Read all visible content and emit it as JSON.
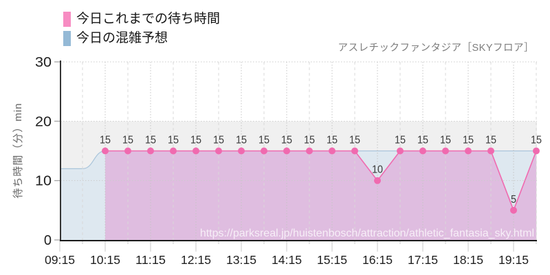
{
  "legend": {
    "items": [
      {
        "label": "今日これまでの待ち時間",
        "color": "#f78cc2"
      },
      {
        "label": "今日の混雑予想",
        "color": "#94b9d6"
      }
    ]
  },
  "chart_data": {
    "type": "area",
    "title": "アスレチックファンタジア［SKYフロア］",
    "ylabel": "待ち時間（分）min",
    "ylim": [
      0,
      30
    ],
    "yticks": [
      0,
      10,
      20,
      30
    ],
    "xticks": [
      "09:15",
      "10:15",
      "11:15",
      "12:15",
      "13:15",
      "14:15",
      "15:15",
      "16:15",
      "17:15",
      "18:15",
      "19:15"
    ],
    "grid": true,
    "legend_position": "top-left",
    "band_max": 20,
    "band_color": "#f0f0f0",
    "series": [
      {
        "name": "今日の混雑予想",
        "role": "forecast",
        "start": "09:15",
        "step_min": 30,
        "line_color": "#a9c4da",
        "fill_color": "#dee8f0",
        "show_points": false,
        "show_labels": false,
        "smooth": true,
        "values": [
          12,
          12,
          15,
          15,
          15,
          15,
          15,
          15,
          15,
          15,
          15,
          15,
          15,
          15,
          15,
          15,
          15,
          15,
          15,
          15,
          15,
          15
        ]
      },
      {
        "name": "今日これまでの待ち時間",
        "role": "actual",
        "start": "10:15",
        "step_min": 30,
        "line_color": "#f06aaf",
        "fill_color": "#dfbde0",
        "show_points": true,
        "show_labels": true,
        "smooth": false,
        "values": [
          15,
          15,
          15,
          15,
          15,
          15,
          15,
          15,
          15,
          15,
          15,
          15,
          10,
          15,
          15,
          15,
          15,
          15,
          5,
          15
        ]
      }
    ],
    "watermark": "https://parksreal.jp/huistenbosch/attraction/athletic_fantasia_sky.html"
  }
}
